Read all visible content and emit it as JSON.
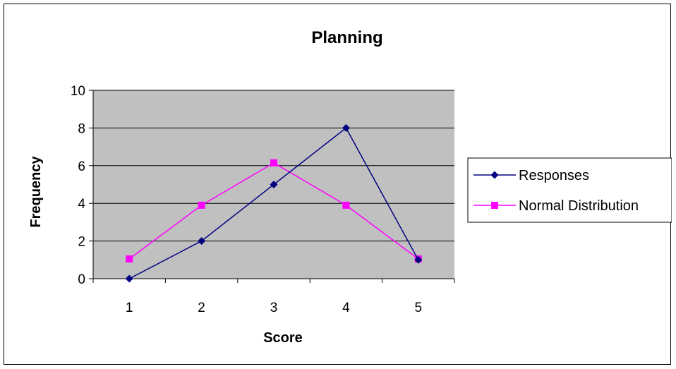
{
  "chart_data": {
    "type": "line",
    "title": "Planning",
    "xlabel": "Score",
    "ylabel": "Frequency",
    "categories": [
      "1",
      "2",
      "3",
      "4",
      "5"
    ],
    "ylim": [
      0,
      10
    ],
    "yticks": [
      "0",
      "2",
      "4",
      "6",
      "8",
      "10"
    ],
    "grid": true,
    "legend_position": "right",
    "series": [
      {
        "name": "Responses",
        "values": [
          0,
          2,
          5,
          8,
          1
        ],
        "color": "#000080",
        "marker": "diamond"
      },
      {
        "name": "Normal Distribution",
        "values": [
          1.05,
          3.9,
          6.15,
          3.9,
          1.05
        ],
        "color": "#FF00FF",
        "marker": "square"
      }
    ]
  },
  "colors": {
    "plot_background": "#C0C0C0",
    "gridline": "#000000"
  }
}
